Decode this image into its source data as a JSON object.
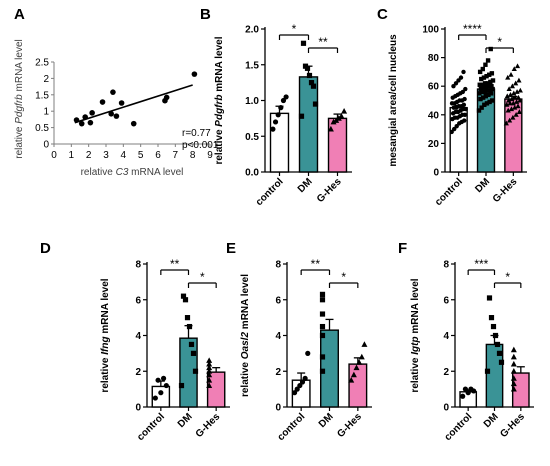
{
  "chart_data": [
    {
      "panel": "A",
      "type": "scatter",
      "xlabel": [
        "relative ",
        "C3",
        " mRNA level"
      ],
      "ylabel": [
        "relative ",
        "Pdgfrb",
        " mRNA level"
      ],
      "xlim": [
        0,
        9
      ],
      "ylim": [
        0,
        2.5
      ],
      "xticks": [
        "0",
        "1",
        "2",
        "3",
        "4",
        "5",
        "6",
        "7",
        "8",
        "9"
      ],
      "yticks": [
        "0",
        "0.5",
        "1",
        "1.5",
        "2",
        "2.5"
      ],
      "points": [
        {
          "x": 1.3,
          "y": 0.73
        },
        {
          "x": 1.6,
          "y": 0.62
        },
        {
          "x": 1.8,
          "y": 0.82
        },
        {
          "x": 2.1,
          "y": 0.65
        },
        {
          "x": 2.2,
          "y": 0.95
        },
        {
          "x": 2.8,
          "y": 1.28
        },
        {
          "x": 3.3,
          "y": 0.92
        },
        {
          "x": 3.4,
          "y": 1.58
        },
        {
          "x": 3.6,
          "y": 0.85
        },
        {
          "x": 3.9,
          "y": 1.25
        },
        {
          "x": 4.6,
          "y": 0.62
        },
        {
          "x": 6.4,
          "y": 1.32
        },
        {
          "x": 6.5,
          "y": 1.42
        },
        {
          "x": 8.1,
          "y": 2.13
        }
      ],
      "fit": {
        "x": [
          1.2,
          8.0
        ],
        "y": [
          0.65,
          1.8
        ]
      },
      "annotations": [
        "r=0.77",
        "p<0.001"
      ]
    },
    {
      "panel": "B",
      "type": "bar",
      "categories": [
        "control",
        "DM",
        "G-Hes"
      ],
      "values": [
        0.82,
        1.33,
        0.75
      ],
      "errors": [
        0.1,
        0.15,
        0.06
      ],
      "ylabel": [
        "relative ",
        "Pdgfrb",
        " mRNA level"
      ],
      "ylim": [
        0,
        2.0
      ],
      "yticks": [
        "0.0",
        "0.5",
        "1.0",
        "1.5",
        "2.0"
      ],
      "points": [
        [
          0.6,
          0.7,
          0.8,
          0.9,
          1.0,
          1.05
        ],
        [
          0.78,
          0.95,
          1.2,
          1.25,
          1.35,
          1.45,
          1.48,
          1.8
        ],
        [
          0.6,
          0.7,
          0.72,
          0.75,
          0.78,
          0.85
        ]
      ],
      "significance": [
        {
          "from": 0,
          "to": 1,
          "label": "*"
        },
        {
          "from": 1,
          "to": 2,
          "label": "**"
        }
      ],
      "colors": [
        "#ffffff",
        "#3a9396",
        "#f07fb5"
      ]
    },
    {
      "panel": "C",
      "type": "bar",
      "categories": [
        "control",
        "DM",
        "G-Hes"
      ],
      "values": [
        45,
        58,
        51
      ],
      "errors": [
        1.5,
        1.5,
        1.8
      ],
      "ylabel": [
        "mesangial area/cell nucleus"
      ],
      "ylim": [
        0,
        100
      ],
      "yticks": [
        "0",
        "20",
        "40",
        "60",
        "80",
        "100"
      ],
      "points": [
        [
          28,
          30,
          32,
          34,
          35,
          36,
          37,
          38,
          38,
          39,
          40,
          40,
          41,
          42,
          42,
          43,
          44,
          44,
          45,
          45,
          46,
          46,
          47,
          48,
          48,
          49,
          50,
          50,
          51,
          52,
          53,
          54,
          55,
          56,
          58,
          60,
          62,
          64,
          66,
          70
        ],
        [
          43,
          45,
          47,
          48,
          49,
          50,
          51,
          52,
          53,
          54,
          55,
          55,
          56,
          56,
          57,
          57,
          58,
          58,
          59,
          59,
          60,
          60,
          61,
          61,
          62,
          62,
          63,
          64,
          65,
          66,
          67,
          68,
          69,
          70,
          72,
          75,
          78,
          86
        ],
        [
          34,
          36,
          38,
          40,
          42,
          43,
          44,
          45,
          46,
          47,
          48,
          48,
          49,
          50,
          50,
          51,
          52,
          52,
          53,
          54,
          55,
          56,
          57,
          58,
          60,
          62,
          64,
          66,
          68,
          72,
          74
        ]
      ],
      "significance": [
        {
          "from": 0,
          "to": 1,
          "label": "****"
        },
        {
          "from": 1,
          "to": 2,
          "label": "*"
        }
      ],
      "colors": [
        "#ffffff",
        "#3a9396",
        "#f07fb5"
      ]
    },
    {
      "panel": "D",
      "type": "bar",
      "categories": [
        "control",
        "DM",
        "G-Hes"
      ],
      "values": [
        1.15,
        3.85,
        1.95
      ],
      "errors": [
        0.3,
        0.7,
        0.25
      ],
      "ylabel": [
        "relative ",
        "Ifng",
        " mRNA level"
      ],
      "ylim": [
        0,
        8
      ],
      "yticks": [
        "0",
        "2",
        "4",
        "6",
        "8"
      ],
      "points": [
        [
          0.5,
          0.8,
          1.2,
          1.5,
          1.6
        ],
        [
          1.2,
          2.0,
          3.0,
          3.5,
          4.5,
          5.0,
          6.0,
          6.2
        ],
        [
          1.2,
          1.5,
          1.8,
          2.0,
          2.2,
          2.4,
          2.6
        ]
      ],
      "significance": [
        {
          "from": 0,
          "to": 1,
          "label": "**"
        },
        {
          "from": 1,
          "to": 2,
          "label": "*"
        }
      ],
      "colors": [
        "#ffffff",
        "#3a9396",
        "#f07fb5"
      ]
    },
    {
      "panel": "E",
      "type": "bar",
      "categories": [
        "control",
        "DM",
        "G-Hes"
      ],
      "values": [
        1.5,
        4.3,
        2.4
      ],
      "errors": [
        0.4,
        0.6,
        0.35
      ],
      "ylabel": [
        "relative ",
        "Oasl2",
        " mRNA level"
      ],
      "ylim": [
        0,
        8
      ],
      "yticks": [
        "0",
        "2",
        "4",
        "6",
        "8"
      ],
      "points": [
        [
          0.8,
          1.0,
          1.2,
          1.4,
          1.6,
          3.0
        ],
        [
          2.0,
          2.8,
          4.0,
          4.5,
          5.2,
          6.0,
          6.3
        ],
        [
          1.5,
          1.8,
          2.2,
          2.5,
          2.8,
          3.5
        ]
      ],
      "significance": [
        {
          "from": 0,
          "to": 1,
          "label": "**"
        },
        {
          "from": 1,
          "to": 2,
          "label": "*"
        }
      ],
      "colors": [
        "#ffffff",
        "#3a9396",
        "#f07fb5"
      ]
    },
    {
      "panel": "F",
      "type": "bar",
      "categories": [
        "control",
        "DM",
        "G-Hes"
      ],
      "values": [
        0.85,
        3.5,
        1.9
      ],
      "errors": [
        0.1,
        0.5,
        0.35
      ],
      "ylabel": [
        "relative ",
        "Igtp",
        " mRNA level"
      ],
      "ylim": [
        0,
        8
      ],
      "yticks": [
        "0",
        "2",
        "4",
        "6",
        "8"
      ],
      "points": [
        [
          0.6,
          0.8,
          0.9,
          1.0,
          1.0
        ],
        [
          2.0,
          2.5,
          3.0,
          3.5,
          4.0,
          4.5,
          5.0,
          6.1
        ],
        [
          1.0,
          1.3,
          1.6,
          2.0,
          2.4,
          2.8,
          3.2
        ]
      ],
      "significance": [
        {
          "from": 0,
          "to": 1,
          "label": "***"
        },
        {
          "from": 1,
          "to": 2,
          "label": "*"
        }
      ],
      "colors": [
        "#ffffff",
        "#3a9396",
        "#f07fb5"
      ]
    }
  ]
}
